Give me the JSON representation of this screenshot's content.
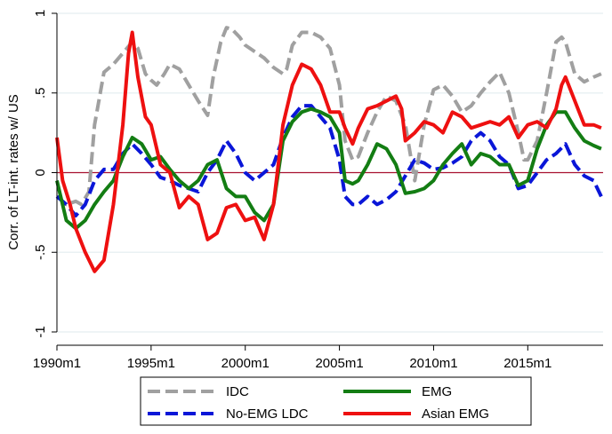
{
  "chart_data": {
    "type": "line",
    "title": "",
    "xlabel": "",
    "ylabel": "Corr. of LT-int. rates w/ US",
    "xlim": [
      1990.0,
      2019.0
    ],
    "ylim": [
      -1,
      1
    ],
    "x_ticks": [
      {
        "value": 1990,
        "label": "1990m1"
      },
      {
        "value": 1995,
        "label": "1995m1"
      },
      {
        "value": 2000,
        "label": "2000m1"
      },
      {
        "value": 2005,
        "label": "2005m1"
      },
      {
        "value": 2010,
        "label": "2010m1"
      },
      {
        "value": 2015,
        "label": "2015m1"
      }
    ],
    "y_ticks": [
      {
        "value": 1,
        "label": "1"
      },
      {
        "value": 0.5,
        "label": ".5"
      },
      {
        "value": 0,
        "label": "0"
      },
      {
        "value": -0.5,
        "label": "-.5"
      },
      {
        "value": -1,
        "label": "-1"
      }
    ],
    "grid": true,
    "reference_line": {
      "y": 0,
      "color": "#a8102f"
    },
    "legend_position": "bottom",
    "series": [
      {
        "name": "IDC",
        "color": "#a0a0a0",
        "dash": "long-dash",
        "x": [
          1990.0,
          1990.5,
          1991.0,
          1991.3,
          1991.7,
          1992.0,
          1992.5,
          1993.0,
          1993.5,
          1994.0,
          1994.3,
          1994.7,
          1995.0,
          1995.3,
          1995.7,
          1996.0,
          1996.5,
          1997.0,
          1997.5,
          1998.0,
          1998.3,
          1998.7,
          1999.0,
          1999.3,
          1999.7,
          2000.0,
          2000.5,
          2001.0,
          2001.5,
          2002.0,
          2002.2,
          2002.5,
          2003.0,
          2003.5,
          2004.0,
          2004.5,
          2005.0,
          2005.3,
          2005.7,
          2006.0,
          2006.5,
          2007.0,
          2007.5,
          2008.0,
          2008.5,
          2009.0,
          2009.5,
          2010.0,
          2010.5,
          2011.0,
          2011.5,
          2012.0,
          2012.5,
          2013.0,
          2013.5,
          2014.0,
          2014.5,
          2014.8,
          2015.0,
          2015.5,
          2016.0,
          2016.5,
          2016.8,
          2017.0,
          2017.5,
          2018.0,
          2018.5,
          2018.9
        ],
        "y": [
          -0.15,
          -0.2,
          -0.18,
          -0.2,
          -0.12,
          0.3,
          0.63,
          0.68,
          0.75,
          0.82,
          0.78,
          0.62,
          0.58,
          0.55,
          0.62,
          0.68,
          0.65,
          0.55,
          0.45,
          0.36,
          0.6,
          0.82,
          0.91,
          0.9,
          0.85,
          0.8,
          0.76,
          0.72,
          0.66,
          0.62,
          0.65,
          0.8,
          0.88,
          0.88,
          0.85,
          0.78,
          0.55,
          0.2,
          0.08,
          0.1,
          0.25,
          0.38,
          0.48,
          0.45,
          0.3,
          -0.05,
          0.3,
          0.52,
          0.55,
          0.48,
          0.38,
          0.42,
          0.5,
          0.57,
          0.63,
          0.5,
          0.25,
          0.08,
          0.08,
          0.2,
          0.5,
          0.82,
          0.85,
          0.82,
          0.62,
          0.57,
          0.6,
          0.62
        ]
      },
      {
        "name": "No-EMG LDC",
        "color": "#0a16d8",
        "dash": "long-dash",
        "x": [
          1990.0,
          1990.5,
          1991.0,
          1991.5,
          1992.0,
          1992.5,
          1993.0,
          1993.5,
          1994.0,
          1994.5,
          1995.0,
          1995.5,
          1996.0,
          1996.5,
          1997.0,
          1997.5,
          1998.0,
          1998.5,
          1999.0,
          1999.5,
          2000.0,
          2000.5,
          2001.0,
          2001.5,
          2002.0,
          2002.5,
          2003.0,
          2003.5,
          2004.0,
          2004.5,
          2005.0,
          2005.3,
          2005.7,
          2006.0,
          2006.5,
          2007.0,
          2007.5,
          2008.0,
          2008.5,
          2009.0,
          2009.5,
          2010.0,
          2010.5,
          2011.0,
          2011.5,
          2012.0,
          2012.5,
          2013.0,
          2013.5,
          2014.0,
          2014.5,
          2015.0,
          2015.5,
          2016.0,
          2016.5,
          2017.0,
          2017.5,
          2018.0,
          2018.5,
          2018.9
        ],
        "y": [
          -0.15,
          -0.2,
          -0.27,
          -0.2,
          -0.05,
          0.02,
          0.02,
          0.12,
          0.18,
          0.12,
          0.05,
          -0.03,
          -0.05,
          -0.08,
          -0.1,
          -0.12,
          0.0,
          0.08,
          0.2,
          0.12,
          0.0,
          -0.05,
          0.0,
          0.05,
          0.22,
          0.35,
          0.42,
          0.42,
          0.35,
          0.28,
          0.08,
          -0.15,
          -0.2,
          -0.2,
          -0.15,
          -0.2,
          -0.17,
          -0.12,
          -0.02,
          0.08,
          0.06,
          0.02,
          0.03,
          0.06,
          0.1,
          0.2,
          0.25,
          0.2,
          0.1,
          0.05,
          -0.1,
          -0.08,
          0.0,
          0.08,
          0.12,
          0.18,
          0.05,
          -0.02,
          -0.05,
          -0.15
        ]
      },
      {
        "name": "EMG",
        "color": "#137d13",
        "dash": "solid",
        "x": [
          1990.0,
          1990.5,
          1991.0,
          1991.5,
          1992.0,
          1992.5,
          1993.0,
          1993.5,
          1994.0,
          1994.5,
          1995.0,
          1995.5,
          1996.0,
          1996.5,
          1997.0,
          1997.5,
          1998.0,
          1998.5,
          1999.0,
          1999.5,
          2000.0,
          2000.5,
          2001.0,
          2001.5,
          2002.0,
          2002.5,
          2003.0,
          2003.5,
          2004.0,
          2004.5,
          2005.0,
          2005.3,
          2005.7,
          2006.0,
          2006.5,
          2007.0,
          2007.5,
          2008.0,
          2008.5,
          2009.0,
          2009.5,
          2010.0,
          2010.5,
          2011.0,
          2011.5,
          2012.0,
          2012.5,
          2013.0,
          2013.5,
          2014.0,
          2014.5,
          2015.0,
          2015.5,
          2016.0,
          2016.5,
          2017.0,
          2017.5,
          2018.0,
          2018.5,
          2018.9
        ],
        "y": [
          -0.05,
          -0.3,
          -0.35,
          -0.3,
          -0.2,
          -0.12,
          -0.05,
          0.1,
          0.22,
          0.18,
          0.08,
          0.1,
          0.02,
          -0.05,
          -0.1,
          -0.05,
          0.05,
          0.08,
          -0.1,
          -0.15,
          -0.15,
          -0.25,
          -0.3,
          -0.2,
          0.2,
          0.32,
          0.38,
          0.4,
          0.38,
          0.35,
          0.25,
          -0.05,
          -0.07,
          -0.05,
          0.05,
          0.18,
          0.15,
          0.05,
          -0.13,
          -0.12,
          -0.1,
          -0.05,
          0.05,
          0.12,
          0.18,
          0.05,
          0.12,
          0.1,
          0.05,
          0.05,
          -0.08,
          -0.05,
          0.15,
          0.3,
          0.38,
          0.38,
          0.28,
          0.2,
          0.17,
          0.15
        ]
      },
      {
        "name": "Asian EMG",
        "color": "#ee1010",
        "dash": "solid",
        "x": [
          1990.0,
          1990.3,
          1990.7,
          1991.0,
          1991.5,
          1992.0,
          1992.5,
          1993.0,
          1993.5,
          1993.8,
          1994.0,
          1994.3,
          1994.7,
          1995.0,
          1995.5,
          1996.0,
          1996.5,
          1997.0,
          1997.5,
          1998.0,
          1998.5,
          1999.0,
          1999.5,
          2000.0,
          2000.5,
          2001.0,
          2001.5,
          2002.0,
          2002.5,
          2003.0,
          2003.5,
          2004.0,
          2004.5,
          2005.0,
          2005.3,
          2005.7,
          2006.0,
          2006.5,
          2007.0,
          2007.5,
          2008.0,
          2008.3,
          2008.5,
          2009.0,
          2009.5,
          2010.0,
          2010.5,
          2011.0,
          2011.5,
          2012.0,
          2012.5,
          2013.0,
          2013.5,
          2014.0,
          2014.5,
          2015.0,
          2015.5,
          2016.0,
          2016.5,
          2016.8,
          2017.0,
          2017.5,
          2018.0,
          2018.5,
          2018.9
        ],
        "y": [
          0.22,
          -0.05,
          -0.2,
          -0.35,
          -0.5,
          -0.62,
          -0.55,
          -0.2,
          0.3,
          0.75,
          0.88,
          0.6,
          0.35,
          0.3,
          0.05,
          0.0,
          -0.22,
          -0.15,
          -0.2,
          -0.42,
          -0.38,
          -0.22,
          -0.2,
          -0.3,
          -0.28,
          -0.42,
          -0.2,
          0.3,
          0.55,
          0.68,
          0.65,
          0.55,
          0.38,
          0.38,
          0.28,
          0.18,
          0.28,
          0.4,
          0.42,
          0.45,
          0.48,
          0.4,
          0.2,
          0.25,
          0.32,
          0.3,
          0.25,
          0.38,
          0.35,
          0.28,
          0.3,
          0.32,
          0.3,
          0.35,
          0.22,
          0.3,
          0.32,
          0.28,
          0.4,
          0.55,
          0.6,
          0.45,
          0.3,
          0.3,
          0.28
        ]
      }
    ]
  }
}
